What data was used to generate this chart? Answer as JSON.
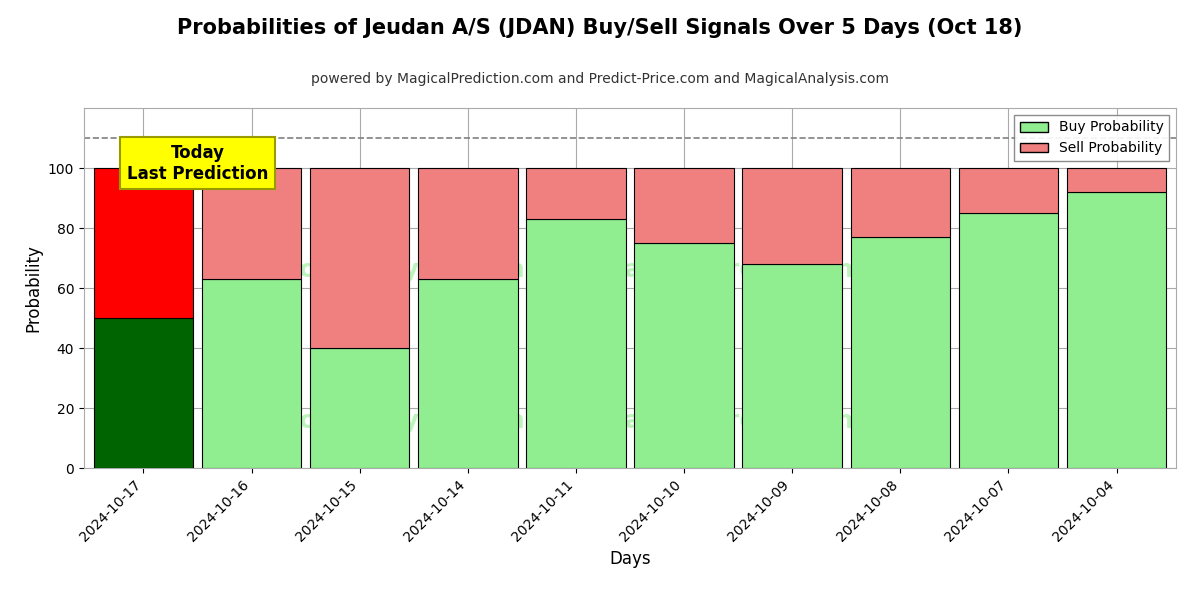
{
  "title": "Probabilities of Jeudan A/S (JDAN) Buy/Sell Signals Over 5 Days (Oct 18)",
  "subtitle": "powered by MagicalPrediction.com and Predict-Price.com and MagicalAnalysis.com",
  "xlabel": "Days",
  "ylabel": "Probability",
  "categories": [
    "2024-10-17",
    "2024-10-16",
    "2024-10-15",
    "2024-10-14",
    "2024-10-11",
    "2024-10-10",
    "2024-10-09",
    "2024-10-08",
    "2024-10-07",
    "2024-10-04"
  ],
  "buy_values": [
    50,
    63,
    40,
    63,
    83,
    75,
    68,
    77,
    85,
    92
  ],
  "sell_values": [
    50,
    37,
    60,
    37,
    17,
    25,
    32,
    23,
    15,
    8
  ],
  "today_bar_buy_color": "#006400",
  "today_bar_sell_color": "#FF0000",
  "buy_color": "#90EE90",
  "sell_color": "#F08080",
  "today_annotation_text": "Today\nLast Prediction",
  "today_annotation_bg": "#FFFF00",
  "today_annotation_edgecolor": "#999900",
  "legend_buy_label": "Buy Probability",
  "legend_sell_label": "Sell Probability",
  "ylim": [
    0,
    120
  ],
  "dashed_line_y": 110,
  "background_color": "#ffffff",
  "grid_color": "#aaaaaa",
  "bar_width": 0.92
}
